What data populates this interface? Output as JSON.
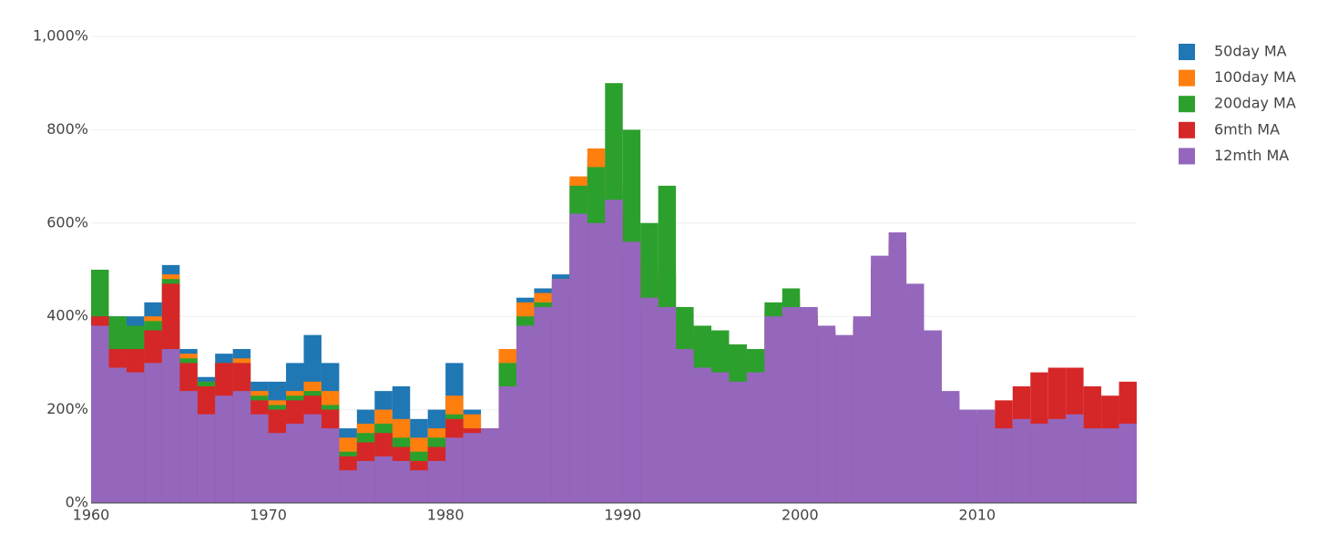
{
  "chart_data": {
    "type": "bar",
    "barmode": "overlay",
    "x": [
      1960,
      1961,
      1962,
      1963,
      1964,
      1965,
      1966,
      1967,
      1968,
      1969,
      1970,
      1971,
      1972,
      1973,
      1974,
      1975,
      1976,
      1977,
      1978,
      1979,
      1980,
      1981,
      1982,
      1983,
      1984,
      1985,
      1986,
      1987,
      1988,
      1989,
      1990,
      1991,
      1992,
      1993,
      1994,
      1995,
      1996,
      1997,
      1998,
      1999,
      2000,
      2001,
      2002,
      2003,
      2004,
      2005,
      2006,
      2007,
      2008,
      2009,
      2010,
      2011,
      2012,
      2013,
      2014,
      2015,
      2016,
      2017,
      2018
    ],
    "series": [
      {
        "name": "50day MA",
        "color": "#1f77b4",
        "values": [
          460,
          400,
          400,
          430,
          510,
          330,
          270,
          320,
          330,
          260,
          260,
          300,
          360,
          300,
          160,
          200,
          240,
          250,
          180,
          200,
          300,
          200,
          160,
          320,
          440,
          460,
          490,
          690,
          740,
          660,
          590,
          480,
          490,
          390,
          350,
          340,
          310,
          300,
          410,
          430,
          390,
          350,
          330,
          370,
          480,
          530,
          410,
          320,
          210,
          160,
          160,
          140,
          150,
          140,
          150,
          160,
          130,
          130,
          140
        ]
      },
      {
        "name": "100day MA",
        "color": "#ff7f0e",
        "values": [
          480,
          380,
          370,
          400,
          490,
          320,
          260,
          300,
          310,
          240,
          220,
          240,
          260,
          240,
          140,
          170,
          200,
          180,
          140,
          160,
          230,
          190,
          160,
          330,
          430,
          450,
          480,
          700,
          760,
          680,
          600,
          500,
          500,
          400,
          360,
          350,
          320,
          310,
          420,
          440,
          400,
          360,
          340,
          380,
          490,
          540,
          420,
          330,
          220,
          170,
          170,
          150,
          160,
          150,
          160,
          170,
          140,
          140,
          150
        ]
      },
      {
        "name": "200day MA",
        "color": "#2ca02c",
        "values": [
          500,
          400,
          380,
          390,
          480,
          310,
          260,
          300,
          300,
          230,
          210,
          230,
          240,
          210,
          110,
          150,
          170,
          140,
          110,
          140,
          190,
          130,
          150,
          300,
          400,
          430,
          470,
          680,
          720,
          900,
          800,
          600,
          680,
          420,
          380,
          370,
          340,
          330,
          430,
          460,
          410,
          370,
          350,
          390,
          500,
          550,
          430,
          340,
          230,
          180,
          180,
          150,
          170,
          160,
          170,
          180,
          150,
          150,
          160
        ]
      },
      {
        "name": "6mth MA",
        "color": "#d62728",
        "values": [
          400,
          330,
          330,
          370,
          470,
          300,
          250,
          300,
          300,
          220,
          200,
          220,
          230,
          200,
          100,
          130,
          150,
          120,
          90,
          120,
          180,
          160,
          160,
          240,
          360,
          400,
          460,
          600,
          580,
          630,
          540,
          420,
          400,
          320,
          280,
          270,
          250,
          270,
          390,
          410,
          400,
          370,
          350,
          390,
          510,
          560,
          450,
          350,
          230,
          190,
          190,
          220,
          250,
          280,
          290,
          290,
          250,
          230,
          260
        ]
      },
      {
        "name": "12mth MA",
        "color": "#9467bd",
        "values": [
          380,
          290,
          280,
          300,
          330,
          240,
          190,
          230,
          240,
          190,
          150,
          170,
          190,
          160,
          70,
          90,
          100,
          90,
          70,
          90,
          140,
          150,
          160,
          250,
          380,
          420,
          480,
          620,
          600,
          650,
          560,
          440,
          420,
          330,
          290,
          280,
          260,
          280,
          400,
          420,
          420,
          380,
          360,
          400,
          530,
          580,
          470,
          370,
          240,
          200,
          200,
          160,
          180,
          170,
          180,
          190,
          160,
          160,
          170
        ]
      }
    ],
    "xlim": [
      1960,
      2019
    ],
    "xticks": [
      1960,
      1970,
      1980,
      1990,
      2000,
      2010
    ],
    "ylim": [
      0,
      1000
    ],
    "yticks": [
      {
        "value": 0,
        "label": "0%"
      },
      {
        "value": 200,
        "label": "200%"
      },
      {
        "value": 400,
        "label": "400%"
      },
      {
        "value": 600,
        "label": "600%"
      },
      {
        "value": 800,
        "label": "800%"
      },
      {
        "value": 1000,
        "label": "1,000%"
      }
    ],
    "grid": true,
    "legend": "right"
  }
}
